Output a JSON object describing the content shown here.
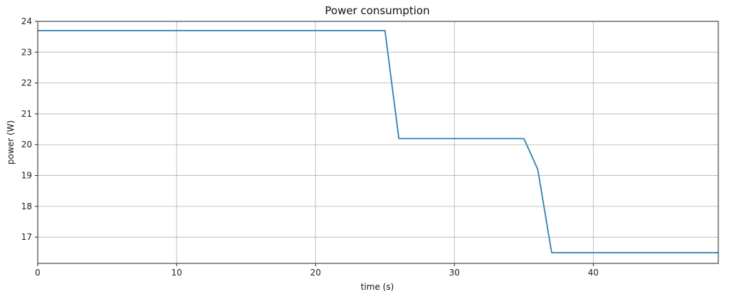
{
  "chart_data": {
    "type": "line",
    "title": "Power consumption",
    "xlabel": "time (s)",
    "ylabel": "power (W)",
    "xlim": [
      0,
      49
    ],
    "ylim": [
      16.15,
      24.0
    ],
    "xticks": [
      0,
      10,
      20,
      30,
      40
    ],
    "yticks": [
      17,
      18,
      19,
      20,
      21,
      22,
      23,
      24
    ],
    "grid": true,
    "series": [
      {
        "color": "#2f7fb5",
        "x": [
          0,
          25,
          26,
          35,
          36,
          37,
          49
        ],
        "y": [
          23.7,
          23.7,
          20.2,
          20.2,
          19.2,
          16.5,
          16.5
        ]
      }
    ]
  }
}
